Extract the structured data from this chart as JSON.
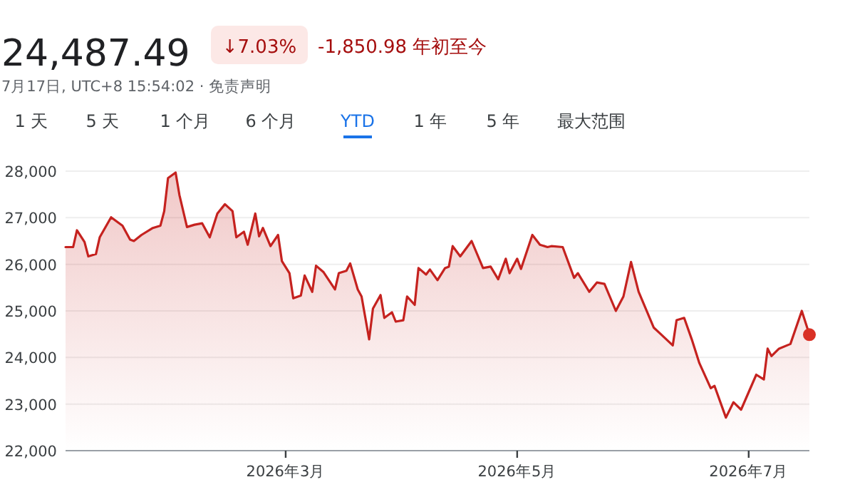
{
  "chart_data": {
    "type": "area",
    "title": "24,487.49",
    "subtitle": "7月17日, UTC+8 15:54:02 · 免责声明",
    "annotations": [
      "↓7.03%",
      "-1,850.98 年初至今",
      "1 天",
      "5 天",
      "1 个月",
      "6 个月",
      "YTD",
      "1 年",
      "5 年",
      "最大范围"
    ],
    "xlim": [
      "2026-01-02",
      "2026-07-17"
    ],
    "xticks": [
      {
        "value": "2026-03-01",
        "label": "2026年3月"
      },
      {
        "value": "2026-05-01",
        "label": "2026年5月"
      },
      {
        "value": "2026-07-01",
        "label": "2026年7月"
      }
    ],
    "ylim": [
      22000,
      28000
    ],
    "yticks": [
      {
        "value": 22000,
        "label": "22,000"
      },
      {
        "value": 23000,
        "label": "23,000"
      },
      {
        "value": 24000,
        "label": "24,000"
      },
      {
        "value": 25000,
        "label": "25,000"
      },
      {
        "value": 26000,
        "label": "26,000"
      },
      {
        "value": 27000,
        "label": "27,000"
      },
      {
        "value": 28000,
        "label": "28,000"
      }
    ],
    "grid": "y",
    "series": [
      {
        "type": "area",
        "color": "#c5221f",
        "x": [
          "2026-01-02",
          "2026-01-04",
          "2026-01-05",
          "2026-01-07",
          "2026-01-08",
          "2026-01-10",
          "2026-01-11",
          "2026-01-14",
          "2026-01-17",
          "2026-01-19",
          "2026-01-20",
          "2026-01-22",
          "2026-01-25",
          "2026-01-27",
          "2026-01-28",
          "2026-01-29",
          "2026-01-31",
          "2026-02-01",
          "2026-02-03",
          "2026-02-05",
          "2026-02-07",
          "2026-02-09",
          "2026-02-11",
          "2026-02-13",
          "2026-02-15",
          "2026-02-16",
          "2026-02-18",
          "2026-02-19",
          "2026-02-21",
          "2026-02-22",
          "2026-02-23",
          "2026-02-25",
          "2026-02-27",
          "2026-02-28",
          "2026-03-02",
          "2026-03-03",
          "2026-03-05",
          "2026-03-06",
          "2026-03-08",
          "2026-03-09",
          "2026-03-11",
          "2026-03-14",
          "2026-03-15",
          "2026-03-17",
          "2026-03-18",
          "2026-03-20",
          "2026-03-21",
          "2026-03-23",
          "2026-03-24",
          "2026-03-26",
          "2026-03-27",
          "2026-03-29",
          "2026-03-30",
          "2026-04-01",
          "2026-04-02",
          "2026-04-04",
          "2026-04-05",
          "2026-04-07",
          "2026-04-08",
          "2026-04-10",
          "2026-04-12",
          "2026-04-13",
          "2026-04-14",
          "2026-04-16",
          "2026-04-19",
          "2026-04-22",
          "2026-04-24",
          "2026-04-26",
          "2026-04-28",
          "2026-04-29",
          "2026-05-01",
          "2026-05-02",
          "2026-05-05",
          "2026-05-07",
          "2026-05-09",
          "2026-05-10",
          "2026-05-13",
          "2026-05-16",
          "2026-05-17",
          "2026-05-20",
          "2026-05-22",
          "2026-05-24",
          "2026-05-27",
          "2026-05-29",
          "2026-05-31",
          "2026-06-02",
          "2026-06-06",
          "2026-06-08",
          "2026-06-11",
          "2026-06-12",
          "2026-06-14",
          "2026-06-16",
          "2026-06-18",
          "2026-06-21",
          "2026-06-22",
          "2026-06-25",
          "2026-06-27",
          "2026-06-29",
          "2026-07-03",
          "2026-07-05",
          "2026-07-06",
          "2026-07-07",
          "2026-07-09",
          "2026-07-12",
          "2026-07-15",
          "2026-07-17"
        ],
        "values": [
          26370,
          26370,
          26730,
          26480,
          26170,
          26220,
          26580,
          27010,
          26830,
          26530,
          26500,
          26630,
          26780,
          26830,
          27140,
          27850,
          27970,
          27490,
          26800,
          26850,
          26880,
          26580,
          27090,
          27290,
          27140,
          26580,
          26700,
          26420,
          27090,
          26600,
          26780,
          26390,
          26630,
          26070,
          25810,
          25270,
          25330,
          25760,
          25410,
          25970,
          25830,
          25460,
          25810,
          25860,
          26020,
          25460,
          25310,
          24390,
          25050,
          25340,
          24850,
          24970,
          24770,
          24800,
          25310,
          25130,
          25920,
          25780,
          25890,
          25660,
          25920,
          25950,
          26390,
          26170,
          26500,
          25920,
          25950,
          25680,
          26120,
          25810,
          26120,
          25900,
          26630,
          26420,
          26370,
          26390,
          26370,
          25710,
          25810,
          25410,
          25610,
          25580,
          25000,
          25310,
          26050,
          25410,
          24640,
          24490,
          24260,
          24800,
          24850,
          24390,
          23880,
          23340,
          23390,
          22710,
          23040,
          22880,
          23630,
          23530,
          24190,
          24030,
          24190,
          24290,
          25000,
          24490
        ]
      },
      {
        "type": "scatter",
        "color": "#d93025",
        "x": [
          "2026-07-17"
        ],
        "values": [
          24490
        ]
      }
    ]
  }
}
